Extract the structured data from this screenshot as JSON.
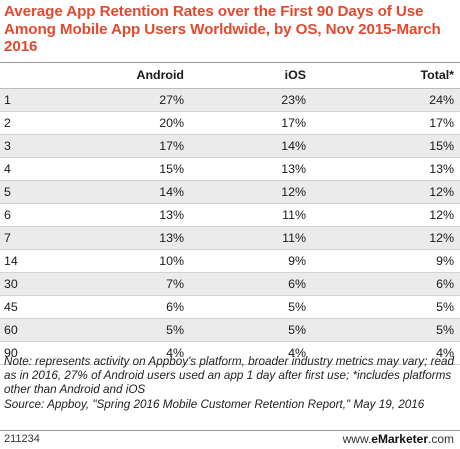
{
  "chart_data": {
    "type": "table",
    "title": "Average App Retention Rates over the First 90 Days of Use Among Mobile App Users Worldwide, by OS, Nov 2015-March 2016",
    "columns": [
      "",
      "Android",
      "iOS",
      "Total*"
    ],
    "rows": [
      [
        "1",
        "27%",
        "23%",
        "24%"
      ],
      [
        "2",
        "20%",
        "17%",
        "17%"
      ],
      [
        "3",
        "17%",
        "14%",
        "15%"
      ],
      [
        "4",
        "15%",
        "13%",
        "13%"
      ],
      [
        "5",
        "14%",
        "12%",
        "12%"
      ],
      [
        "6",
        "13%",
        "11%",
        "12%"
      ],
      [
        "7",
        "13%",
        "11%",
        "12%"
      ],
      [
        "14",
        "10%",
        "9%",
        "9%"
      ],
      [
        "30",
        "7%",
        "6%",
        "6%"
      ],
      [
        "45",
        "6%",
        "5%",
        "5%"
      ],
      [
        "60",
        "5%",
        "5%",
        "5%"
      ],
      [
        "90",
        "4%",
        "4%",
        "4%"
      ]
    ]
  },
  "notes": {
    "note": "Note: represents activity on Appboy's platform, broader industry metrics may vary; read as in 2016, 27% of Android users used an app 1 day after first use; *includes platforms other than Android and iOS",
    "source": "Source: Appboy, \"Spring 2016 Mobile Customer Retention Report,\" May 19, 2016"
  },
  "footer": {
    "chart_id": "211234",
    "brand_prefix": "www.",
    "brand_name": "eMarketer",
    "brand_suffix": ".com"
  },
  "colors": {
    "title": "#e2492f",
    "row_shade": "#ebebeb"
  }
}
